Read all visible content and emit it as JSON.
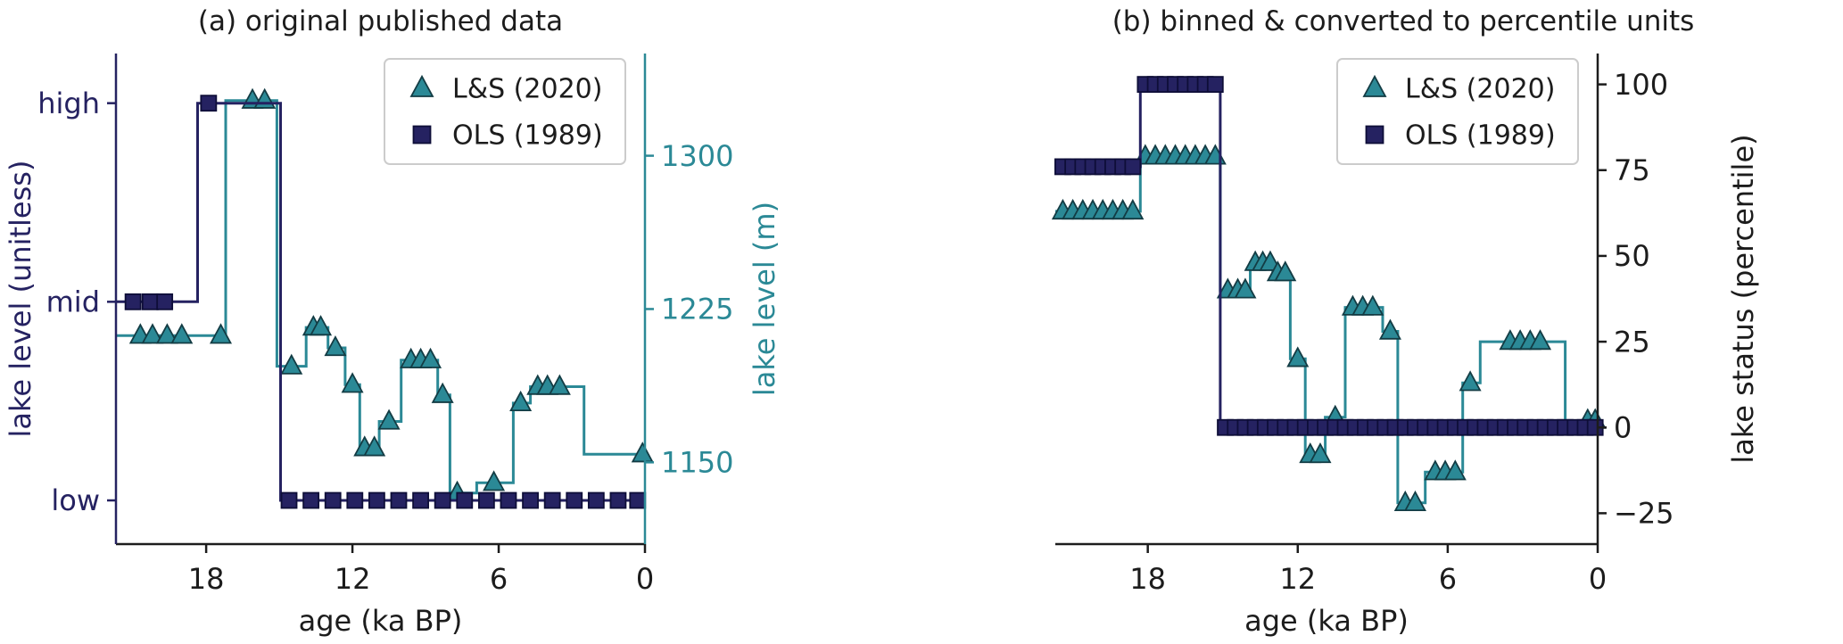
{
  "figure": {
    "background": "#ffffff",
    "text_color": "#1c1c1c"
  },
  "colors": {
    "ls2020": "#2b8996",
    "ols1989": "#252261",
    "legend_border": "#cccccc"
  },
  "chart_data": [
    {
      "id": "a",
      "type": "line",
      "drawstyle": "steps",
      "title": "(a) original published data",
      "xlabel": "age (ka BP)",
      "x_ticks": [
        18,
        12,
        6,
        0
      ],
      "x_range": [
        21.7,
        0
      ],
      "x_reversed": true,
      "grid": false,
      "legend_position": "upper right",
      "axes": {
        "left": {
          "label": "lake level (unitless)",
          "tick_labels": [
            "high",
            "mid",
            "low"
          ],
          "tick_values": [
            2,
            1,
            0
          ],
          "range": [
            -0.22,
            2.25
          ],
          "color": "#252261"
        },
        "right": {
          "label": "lake level (m)",
          "tick_labels": [
            "1300",
            "1225",
            "1150"
          ],
          "tick_values": [
            1300,
            1225,
            1150
          ],
          "range": [
            1110,
            1350
          ],
          "color": "#2b8996"
        }
      },
      "series": [
        {
          "name": "L&S (2020)",
          "axis": "right",
          "marker": "triangle",
          "color": "#2b8996",
          "marker_edge": "#133c44",
          "steps": [
            [
              21.7,
              17.2,
              1212
            ],
            [
              17.2,
              15.1,
              1327
            ],
            [
              15.1,
              13.9,
              1197
            ],
            [
              13.9,
              13.0,
              1216
            ],
            [
              13.0,
              12.3,
              1206
            ],
            [
              12.3,
              11.7,
              1188
            ],
            [
              11.7,
              10.9,
              1157
            ],
            [
              10.9,
              10.0,
              1170
            ],
            [
              10.0,
              8.5,
              1200
            ],
            [
              8.5,
              8.0,
              1183
            ],
            [
              8.0,
              6.9,
              1135
            ],
            [
              6.9,
              5.4,
              1140
            ],
            [
              5.4,
              4.7,
              1179
            ],
            [
              4.7,
              2.5,
              1187
            ],
            [
              2.5,
              0.0,
              1154
            ]
          ],
          "marker_ages": [
            20.7,
            20.2,
            19.6,
            19.0,
            17.4,
            16.1,
            15.6,
            14.5,
            13.6,
            13.3,
            12.7,
            12.0,
            11.5,
            11.1,
            10.5,
            9.6,
            9.2,
            8.8,
            8.3,
            7.7,
            6.2,
            5.1,
            4.4,
            4.0,
            3.5,
            0.1
          ]
        },
        {
          "name": "OLS (1989)",
          "axis": "left",
          "marker": "square",
          "color": "#252261",
          "marker_edge": "#0e0e38",
          "steps": [
            [
              21.7,
              18.35,
              1
            ],
            [
              18.35,
              14.95,
              2
            ],
            [
              14.95,
              0.0,
              0
            ]
          ],
          "marker_ages": [
            21.0,
            20.3,
            19.7,
            17.9,
            14.6,
            13.7,
            12.8,
            11.9,
            11.0,
            10.1,
            9.2,
            8.3,
            7.4,
            6.5,
            5.6,
            4.7,
            3.8,
            2.9,
            2.0,
            1.1,
            0.3
          ]
        }
      ]
    },
    {
      "id": "b",
      "type": "line",
      "drawstyle": "steps",
      "title": "(b) binned & converted to percentile units",
      "xlabel": "age (ka BP)",
      "x_ticks": [
        18,
        12,
        6,
        0
      ],
      "x_range": [
        21.7,
        0
      ],
      "x_reversed": true,
      "grid": false,
      "legend_position": "upper right",
      "axes": {
        "right": {
          "label": "lake status (percentile)",
          "tick_labels": [
            "100",
            "75",
            "50",
            "25",
            "0",
            "−25"
          ],
          "tick_values": [
            100,
            75,
            50,
            25,
            0,
            -25
          ],
          "range": [
            -34,
            109
          ],
          "color": "#1c1c1c"
        }
      },
      "series": [
        {
          "name": "L&S (2020)",
          "axis": "right",
          "marker": "triangle",
          "color": "#2b8996",
          "marker_edge": "#133c44",
          "steps": [
            [
              21.7,
              18.3,
              63
            ],
            [
              18.3,
              15.1,
              79
            ],
            [
              15.1,
              13.9,
              40
            ],
            [
              13.9,
              13.0,
              48
            ],
            [
              13.0,
              12.3,
              45
            ],
            [
              12.3,
              11.7,
              20
            ],
            [
              11.7,
              10.9,
              -8
            ],
            [
              10.9,
              10.1,
              3
            ],
            [
              10.1,
              8.6,
              35
            ],
            [
              8.6,
              8.0,
              28
            ],
            [
              8.0,
              6.9,
              -22
            ],
            [
              6.9,
              5.4,
              -13
            ],
            [
              5.4,
              4.7,
              13
            ],
            [
              4.7,
              1.3,
              25
            ],
            [
              1.3,
              0.0,
              2
            ]
          ],
          "marker_ages": [
            21.4,
            21.0,
            20.6,
            20.2,
            19.8,
            19.4,
            19.0,
            18.6,
            18.1,
            17.7,
            17.3,
            16.9,
            16.5,
            16.1,
            15.7,
            15.3,
            14.8,
            14.4,
            14.1,
            13.7,
            13.4,
            13.1,
            12.8,
            12.5,
            12.0,
            11.5,
            11.1,
            10.5,
            9.8,
            9.4,
            9.0,
            8.3,
            7.7,
            7.3,
            6.5,
            6.1,
            5.7,
            5.1,
            3.5,
            3.1,
            2.7,
            2.3,
            0.4,
            0.1
          ]
        },
        {
          "name": "OLS (1989)",
          "axis": "right",
          "marker": "square",
          "color": "#252261",
          "marker_edge": "#0e0e38",
          "steps": [
            [
              21.7,
              18.3,
              76
            ],
            [
              18.3,
              15.1,
              100
            ],
            [
              15.1,
              0.0,
              0
            ]
          ],
          "marker_ages": [
            21.4,
            21.0,
            20.6,
            20.2,
            19.8,
            19.4,
            19.0,
            18.6,
            18.1,
            17.7,
            17.3,
            16.9,
            16.5,
            16.1,
            15.7,
            15.3,
            14.9,
            14.5,
            14.1,
            13.7,
            13.3,
            12.9,
            12.5,
            12.1,
            11.7,
            11.3,
            10.9,
            10.5,
            10.1,
            9.7,
            9.3,
            8.9,
            8.5,
            8.1,
            7.7,
            7.3,
            6.9,
            6.5,
            6.1,
            5.7,
            5.3,
            4.9,
            4.5,
            4.1,
            3.7,
            3.3,
            2.9,
            2.5,
            2.1,
            1.7,
            1.3,
            0.9,
            0.5,
            0.1
          ]
        }
      ]
    }
  ]
}
